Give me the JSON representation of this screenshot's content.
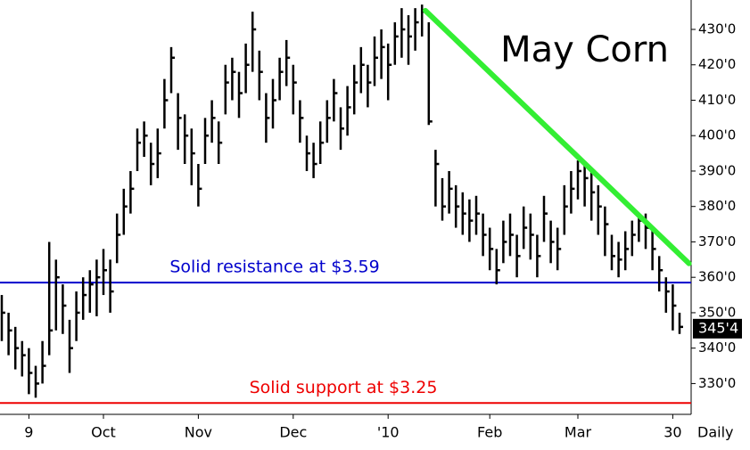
{
  "chart_data": {
    "type": "hlc",
    "title": "May Corn",
    "period": "Daily",
    "categories": [
      null,
      null,
      null,
      null,
      "9",
      null,
      null,
      null,
      null,
      null,
      null,
      null,
      null,
      null,
      null,
      "Oct",
      null,
      null,
      null,
      null,
      null,
      null,
      null,
      null,
      null,
      null,
      null,
      null,
      null,
      "Nov",
      null,
      null,
      null,
      null,
      null,
      null,
      null,
      null,
      null,
      null,
      null,
      null,
      null,
      "Dec",
      null,
      null,
      null,
      null,
      null,
      null,
      null,
      null,
      null,
      null,
      null,
      null,
      null,
      "'10",
      null,
      null,
      null,
      null,
      null,
      null,
      null,
      null,
      null,
      null,
      null,
      null,
      null,
      null,
      "Feb",
      null,
      null,
      null,
      null,
      null,
      null,
      null,
      null,
      null,
      null,
      null,
      null,
      "Mar",
      null,
      null,
      null,
      null,
      null,
      null,
      null,
      null,
      null,
      null,
      null,
      null,
      null,
      "30",
      null
    ],
    "high": [
      355,
      350,
      346,
      342,
      340,
      335,
      342,
      370,
      365,
      358,
      348,
      356,
      360,
      362,
      365,
      368,
      365,
      378,
      385,
      390,
      402,
      404,
      398,
      402,
      416,
      425,
      412,
      406,
      402,
      392,
      405,
      410,
      404,
      420,
      422,
      418,
      426,
      435,
      424,
      412,
      416,
      422,
      427,
      420,
      410,
      400,
      398,
      404,
      410,
      416,
      408,
      414,
      420,
      425,
      420,
      428,
      430,
      426,
      432,
      436,
      434,
      436,
      437,
      432,
      396,
      388,
      390,
      386,
      384,
      382,
      383,
      378,
      374,
      368,
      376,
      378,
      372,
      380,
      378,
      372,
      383,
      376,
      374,
      386,
      390,
      393,
      392,
      390,
      386,
      380,
      372,
      370,
      373,
      376,
      378,
      378,
      374,
      366,
      360,
      358,
      350
    ],
    "low": [
      342,
      338,
      334,
      332,
      327,
      326,
      330,
      338,
      345,
      344,
      333,
      342,
      348,
      350,
      349,
      355,
      350,
      364,
      372,
      378,
      390,
      394,
      386,
      388,
      402,
      412,
      396,
      392,
      386,
      380,
      392,
      398,
      392,
      406,
      410,
      405,
      412,
      418,
      410,
      398,
      402,
      410,
      414,
      406,
      398,
      390,
      388,
      392,
      398,
      404,
      396,
      400,
      406,
      412,
      408,
      414,
      416,
      410,
      420,
      422,
      420,
      424,
      428,
      403,
      380,
      376,
      378,
      374,
      372,
      370,
      372,
      366,
      362,
      358,
      364,
      366,
      360,
      368,
      365,
      360,
      370,
      364,
      362,
      372,
      378,
      382,
      380,
      376,
      372,
      366,
      362,
      360,
      362,
      366,
      370,
      368,
      362,
      356,
      350,
      345,
      344
    ],
    "close": [
      350,
      345,
      340,
      338,
      333,
      330,
      335,
      345,
      360,
      352,
      340,
      350,
      355,
      358,
      360,
      362,
      356,
      372,
      380,
      385,
      398,
      400,
      392,
      395,
      410,
      422,
      405,
      400,
      395,
      385,
      400,
      405,
      398,
      415,
      418,
      412,
      420,
      430,
      418,
      405,
      410,
      418,
      422,
      415,
      405,
      395,
      392,
      398,
      405,
      412,
      402,
      408,
      415,
      420,
      415,
      422,
      425,
      420,
      428,
      430,
      428,
      432,
      435,
      404,
      392,
      380,
      385,
      380,
      378,
      376,
      378,
      372,
      368,
      362,
      370,
      372,
      366,
      374,
      372,
      366,
      378,
      370,
      368,
      380,
      385,
      390,
      388,
      384,
      380,
      375,
      366,
      365,
      368,
      372,
      376,
      374,
      368,
      362,
      356,
      352,
      346
    ],
    "bar_color": "#000000",
    "ylim": [
      321.3,
      438.3
    ],
    "yticks": [
      {
        "value": 330,
        "label": "330'0"
      },
      {
        "value": 340,
        "label": "340'0"
      },
      {
        "value": 350,
        "label": "350'0"
      },
      {
        "value": 360,
        "label": "360'0"
      },
      {
        "value": 370,
        "label": "370'0"
      },
      {
        "value": 380,
        "label": "380'0"
      },
      {
        "value": 390,
        "label": "390'0"
      },
      {
        "value": 400,
        "label": "400'0"
      },
      {
        "value": 410,
        "label": "410'0"
      },
      {
        "value": 420,
        "label": "420'0"
      },
      {
        "value": 430,
        "label": "430'0"
      }
    ],
    "last_price": {
      "value": 345.5,
      "label": "345'4"
    },
    "levels": [
      {
        "value": 358.5,
        "color": "#0000cc",
        "label": "Solid resistance at $3.59"
      },
      {
        "value": 324.5,
        "color": "#ee0000",
        "label": "Solid support at $3.25"
      }
    ],
    "trendline": {
      "color": "#33ee33",
      "start": [
        62.5,
        435.3
      ],
      "end": [
        101.4,
        363.9
      ]
    }
  }
}
